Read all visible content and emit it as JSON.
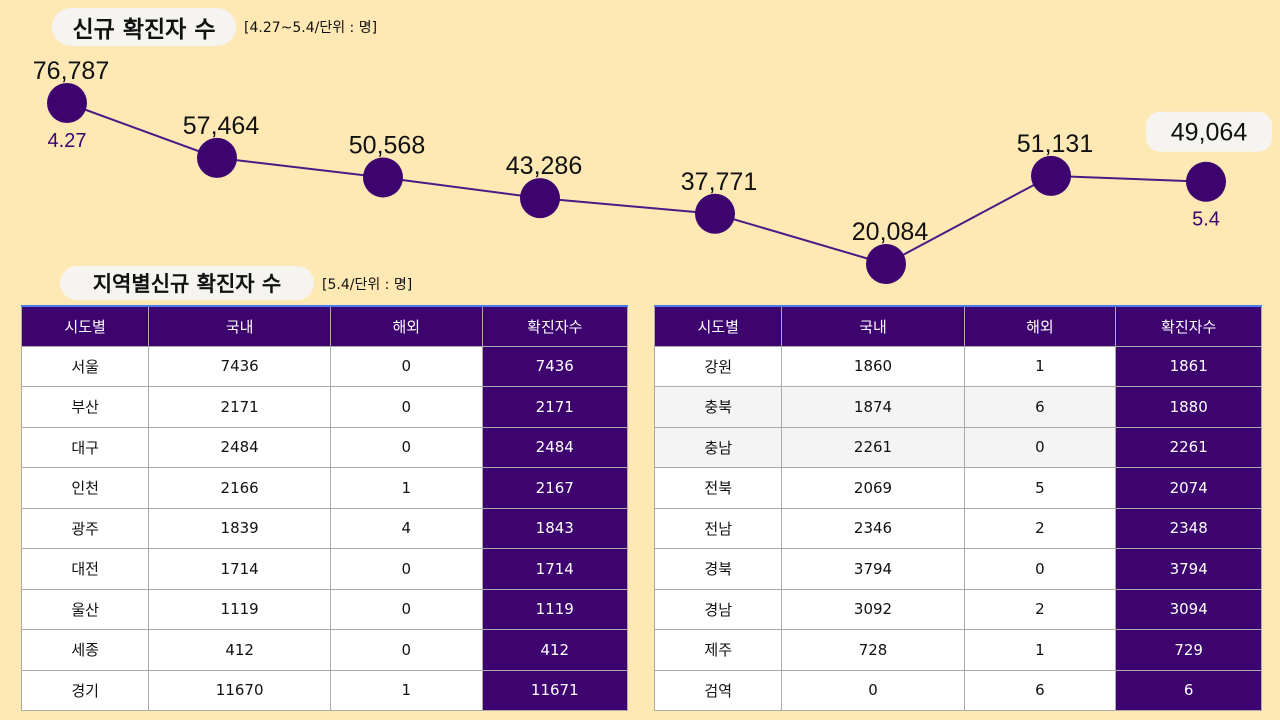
{
  "colors": {
    "accent": "#3d0470",
    "background": "#fee9b5"
  },
  "chart_data": {
    "type": "line",
    "title": "신규 확진자 수",
    "subtitle": "[4.27~5.4/단위 : 명]",
    "x_labels": [
      "4.27",
      "5.4"
    ],
    "values": [
      76787,
      57464,
      50568,
      43286,
      37771,
      20084,
      51131,
      49064
    ],
    "value_labels": [
      "76,787",
      "57,464",
      "50,568",
      "43,286",
      "37,771",
      "20,084",
      "51,131",
      "49,064"
    ],
    "grid": false
  },
  "regional": {
    "title": "지역별신규 확진자 수",
    "subtitle": "[5.4/단위 : 명]",
    "headers": [
      "시도별",
      "국내",
      "해외",
      "확진자수"
    ],
    "left_rows": [
      [
        "서울",
        "7436",
        "0",
        "7436"
      ],
      [
        "부산",
        "2171",
        "0",
        "2171"
      ],
      [
        "대구",
        "2484",
        "0",
        "2484"
      ],
      [
        "인천",
        "2166",
        "1",
        "2167"
      ],
      [
        "광주",
        "1839",
        "4",
        "1843"
      ],
      [
        "대전",
        "1714",
        "0",
        "1714"
      ],
      [
        "울산",
        "1119",
        "0",
        "1119"
      ],
      [
        "세종",
        "412",
        "0",
        "412"
      ],
      [
        "경기",
        "11670",
        "1",
        "11671"
      ]
    ],
    "right_rows": [
      [
        "강원",
        "1860",
        "1",
        "1861"
      ],
      [
        "충북",
        "1874",
        "6",
        "1880"
      ],
      [
        "충남",
        "2261",
        "0",
        "2261"
      ],
      [
        "전북",
        "2069",
        "5",
        "2074"
      ],
      [
        "전남",
        "2346",
        "2",
        "2348"
      ],
      [
        "경북",
        "3794",
        "0",
        "3794"
      ],
      [
        "경남",
        "3092",
        "2",
        "3094"
      ],
      [
        "제주",
        "728",
        "1",
        "729"
      ],
      [
        "검역",
        "0",
        "6",
        "6"
      ]
    ]
  }
}
